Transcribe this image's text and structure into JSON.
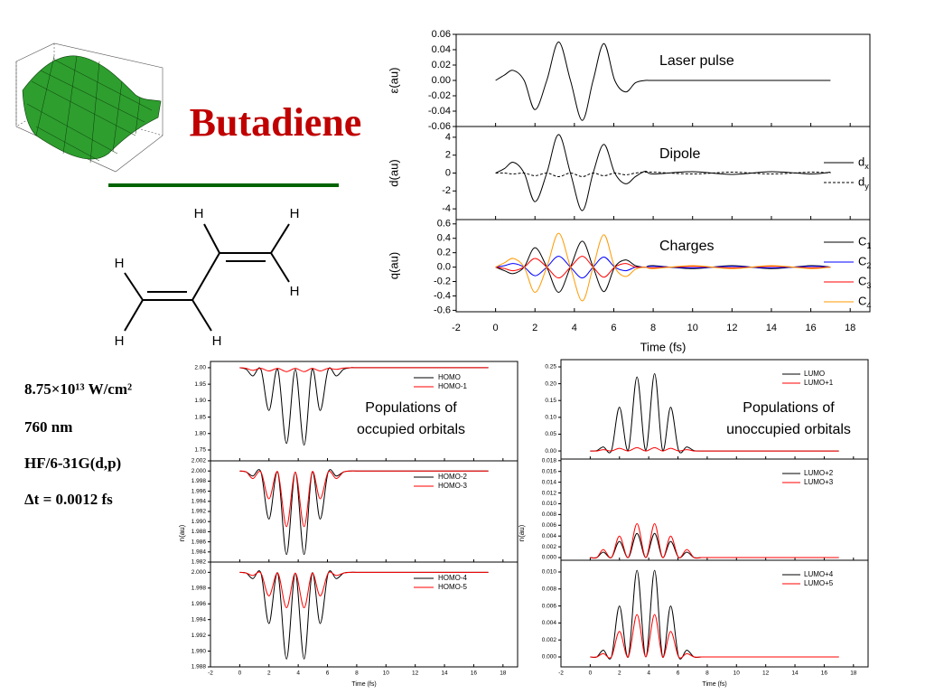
{
  "slide": {
    "title": "Butadiene",
    "conditions": [
      "8.75×10¹³ W/cm²",
      "760 nm",
      "HF/6-31G(d,p)",
      "Δt = 0.0012 fs"
    ],
    "molecule": {
      "atoms": [
        "H",
        "H",
        "H",
        "H",
        "H",
        "H"
      ]
    }
  },
  "chart_data": [
    {
      "type": "line",
      "xlabel": "Time (fs)",
      "xlim": [
        -2,
        19
      ],
      "xticks": [
        -2,
        0,
        2,
        4,
        6,
        8,
        10,
        12,
        14,
        16,
        18
      ],
      "x": [
        0,
        0.45,
        0.9,
        1.45,
        2.0,
        2.6,
        3.2,
        3.8,
        4.4,
        4.95,
        5.5,
        6.05,
        6.6,
        7.1,
        7.6,
        8,
        10,
        12,
        14,
        16,
        17
      ],
      "panels": [
        {
          "ylabel": "ε(au)",
          "annotation": "Laser pulse",
          "ylim": [
            -0.06,
            0.06
          ],
          "yticks": [
            0.06,
            0.04,
            0.02,
            {
              "value": 0,
              "label": "0.00"
            },
            -0.02,
            -0.04,
            -0.06
          ],
          "series": [
            {
              "color": "#000000",
              "values": [
                0,
                0.007,
                0.013,
                0,
                -0.038,
                0,
                0.05,
                0,
                -0.052,
                0,
                0.048,
                0,
                -0.015,
                -0.003,
                0,
                0,
                0,
                0,
                0,
                0,
                0
              ]
            }
          ]
        },
        {
          "ylabel": "d(au)",
          "annotation": "Dipole",
          "ylim": [
            -5.2,
            5.2
          ],
          "yticks": [
            -4,
            -2,
            0,
            2,
            4
          ],
          "series": [
            {
              "name": "dx",
              "color": "#000000",
              "values": [
                0,
                0.5,
                1.2,
                0,
                -3.2,
                0,
                4.3,
                0,
                -4.2,
                0,
                3.2,
                0,
                -1.2,
                -0.4,
                0.2,
                -0.1,
                0.15,
                -0.15,
                0.15,
                -0.1,
                0.1
              ]
            },
            {
              "name": "dy",
              "color": "#000000",
              "dashed": true,
              "values": [
                0,
                0,
                -0.1,
                0,
                -0.3,
                0,
                -0.4,
                0,
                -0.4,
                0,
                -0.3,
                0,
                -0.2,
                0,
                0.1,
                0.1,
                -0.1,
                0.1,
                -0.1,
                0.1,
                0
              ]
            }
          ]
        },
        {
          "ylabel": "q(au)",
          "annotation": "Charges",
          "ylim": [
            -0.62,
            0.66
          ],
          "yticks": [
            -0.6,
            -0.4,
            -0.2,
            {
              "value": 0,
              "label": "0.0"
            },
            0.2,
            0.4,
            0.6
          ],
          "series": [
            {
              "name": "C1",
              "color": "#000000",
              "values": [
                0,
                -0.05,
                -0.09,
                0,
                0.27,
                0,
                -0.35,
                0,
                0.36,
                0,
                -0.34,
                0,
                0.1,
                0.02,
                0,
                0.02,
                -0.02,
                0.02,
                -0.02,
                0.02,
                0
              ]
            },
            {
              "name": "C2",
              "color": "#0000ff",
              "values": [
                0,
                0.02,
                0.05,
                0,
                -0.12,
                0,
                0.15,
                0,
                -0.15,
                0,
                0.14,
                0,
                -0.05,
                0,
                0,
                0.01,
                -0.01,
                0.01,
                -0.01,
                0.01,
                0
              ]
            },
            {
              "name": "C3",
              "color": "#ff0000",
              "values": [
                0,
                -0.02,
                -0.05,
                0,
                0.12,
                0,
                -0.15,
                0,
                0.15,
                0,
                -0.14,
                0,
                0.05,
                0,
                0,
                -0.01,
                0.01,
                -0.01,
                0.01,
                -0.01,
                0
              ]
            },
            {
              "name": "C4",
              "color": "#ff9900",
              "values": [
                0,
                0.06,
                0.12,
                0,
                -0.35,
                0,
                0.47,
                0,
                -0.47,
                0,
                0.45,
                0,
                -0.13,
                -0.03,
                0,
                -0.02,
                0.02,
                -0.02,
                0.02,
                -0.02,
                0
              ]
            }
          ]
        }
      ]
    },
    {
      "type": "line",
      "xlabel": "Time (fs)",
      "ylabel": "n(au)",
      "annotation": [
        "Populations of",
        "occupied orbitals"
      ],
      "xlim": [
        -2,
        19
      ],
      "xticks": [
        -2,
        0,
        2,
        4,
        6,
        8,
        10,
        12,
        14,
        16,
        18
      ],
      "x": [
        0,
        0.45,
        0.9,
        1.45,
        2.0,
        2.6,
        3.2,
        3.8,
        4.4,
        4.95,
        5.5,
        6.05,
        6.6,
        7.1,
        7.6,
        8,
        10,
        12,
        14,
        16,
        17
      ],
      "panels": [
        {
          "ylim": [
            1.717,
            2.019
          ],
          "yticks": [
            1.75,
            {
              "value": 1.8,
              "label": "1.80"
            },
            1.85,
            {
              "value": 1.9,
              "label": "1.90"
            },
            1.95,
            {
              "value": 2,
              "label": "2.00"
            }
          ],
          "series": [
            {
              "name": "HOMO",
              "color": "#000000",
              "values": [
                2.0,
                1.995,
                1.975,
                1.995,
                1.87,
                1.995,
                1.77,
                1.995,
                1.765,
                1.995,
                1.87,
                1.995,
                1.975,
                1.995,
                2.0,
                2.0,
                2.0,
                2.0,
                2.0,
                2.0,
                2.0
              ]
            },
            {
              "name": "HOMO-1",
              "color": "#ff0000",
              "values": [
                2.0,
                1.998,
                1.992,
                1.998,
                1.99,
                1.998,
                1.988,
                1.998,
                1.988,
                1.998,
                1.99,
                1.998,
                1.995,
                1.999,
                2.0,
                2.0,
                2.0,
                2.0,
                2.0,
                2.0,
                2.0
              ]
            }
          ]
        },
        {
          "ylim": [
            1.982,
            2.002
          ],
          "yticks": [
            1.982,
            1.984,
            1.986,
            1.988,
            {
              "value": 1.99,
              "label": "1.990"
            },
            1.992,
            1.994,
            1.996,
            1.998,
            {
              "value": 2,
              "label": "2.000"
            },
            2.002
          ],
          "series": [
            {
              "name": "HOMO-2",
              "color": "#000000",
              "values": [
                2.0,
                1.9998,
                1.999,
                1.9998,
                1.9905,
                1.9998,
                1.9835,
                1.9998,
                1.9835,
                1.9998,
                1.9905,
                1.9998,
                1.999,
                1.9998,
                2.0,
                2.0,
                2.0,
                2.0,
                2.0,
                2.0,
                2.0
              ]
            },
            {
              "name": "HOMO-3",
              "color": "#ff0000",
              "values": [
                2.0,
                1.9998,
                1.9985,
                1.9998,
                1.9945,
                1.9998,
                1.989,
                1.9998,
                1.989,
                1.9998,
                1.9945,
                1.9998,
                1.9985,
                1.9998,
                2.0,
                2.0,
                2.0,
                2.0,
                2.0,
                2.0,
                2.0
              ]
            }
          ]
        },
        {
          "ylim": [
            1.988,
            2.0013
          ],
          "yticks": [
            1.988,
            {
              "value": 1.99,
              "label": "1.990"
            },
            1.992,
            1.994,
            1.996,
            1.998,
            {
              "value": 2,
              "label": "2.000"
            }
          ],
          "series": [
            {
              "name": "HOMO-4",
              "color": "#000000",
              "values": [
                2.0,
                1.9999,
                1.9992,
                1.9999,
                1.9935,
                1.9999,
                1.989,
                1.9999,
                1.989,
                1.9999,
                1.9935,
                1.9999,
                1.9992,
                1.9999,
                2.0,
                2.0,
                2.0,
                2.0,
                2.0,
                2.0,
                2.0
              ]
            },
            {
              "name": "HOMO-5",
              "color": "#ff0000",
              "values": [
                2.0,
                1.9999,
                1.9996,
                1.9999,
                1.997,
                1.9999,
                1.9955,
                1.9999,
                1.9955,
                1.9999,
                1.997,
                1.9999,
                1.9996,
                1.9999,
                2.0,
                2.0,
                2.0,
                2.0,
                2.0,
                2.0,
                2.0
              ]
            }
          ]
        }
      ]
    },
    {
      "type": "line",
      "xlabel": "Time (fs)",
      "ylabel": "n(au)",
      "annotation": [
        "Populations of",
        "unoccupied orbitals"
      ],
      "xlim": [
        -2,
        19
      ],
      "xticks": [
        -2,
        0,
        2,
        4,
        6,
        8,
        10,
        12,
        14,
        16,
        18
      ],
      "x": [
        0,
        0.45,
        0.9,
        1.45,
        2.0,
        2.6,
        3.2,
        3.8,
        4.4,
        4.95,
        5.5,
        6.05,
        6.6,
        7.1,
        7.6,
        8,
        10,
        12,
        14,
        16,
        17
      ],
      "panels": [
        {
          "ylim": [
            -0.024,
            0.2715
          ],
          "yticks": [
            {
              "value": 0,
              "label": "0.00"
            },
            0.05,
            {
              "value": 0.1,
              "label": "0.10"
            },
            0.15,
            {
              "value": 0.2,
              "label": "0.20"
            },
            0.25
          ],
          "series": [
            {
              "name": "LUMO",
              "color": "#000000",
              "values": [
                0,
                0.001,
                0.012,
                0.001,
                0.13,
                0.002,
                0.22,
                0.002,
                0.23,
                0.002,
                0.13,
                0.001,
                0.012,
                0.001,
                0,
                0,
                0,
                0,
                0,
                0,
                0
              ]
            },
            {
              "name": "LUMO+1",
              "color": "#ff0000",
              "values": [
                0,
                0,
                0.004,
                0,
                0.008,
                0,
                0.01,
                0,
                0.01,
                0,
                0.008,
                0,
                0.004,
                0,
                0,
                0,
                0,
                0,
                0,
                0,
                0
              ]
            }
          ]
        },
        {
          "ylim": [
            -0.0005,
            0.0183
          ],
          "yticks": [
            {
              "value": 0,
              "label": "0.000"
            },
            0.002,
            0.004,
            0.006,
            0.008,
            {
              "value": 0.01,
              "label": "0.010"
            },
            0.012,
            0.014,
            0.016,
            0.018
          ],
          "series": [
            {
              "name": "LUMO+2",
              "color": "#000000",
              "values": [
                0,
                0,
                0.001,
                0,
                0.003,
                0,
                0.0045,
                0,
                0.0045,
                0,
                0.003,
                0,
                0.001,
                0,
                0,
                0,
                0,
                0,
                0,
                0,
                0
              ]
            },
            {
              "name": "LUMO+3",
              "color": "#ff0000",
              "values": [
                0,
                0,
                0.0015,
                0,
                0.004,
                0,
                0.0063,
                0,
                0.0063,
                0,
                0.004,
                0,
                0.0015,
                0,
                0,
                0,
                0,
                0,
                0,
                0,
                0
              ]
            }
          ]
        },
        {
          "ylim": [
            -0.00117,
            0.01138
          ],
          "yticks": [
            {
              "value": 0,
              "label": "0.000"
            },
            0.002,
            0.004,
            0.006,
            0.008,
            {
              "value": 0.01,
              "label": "0.010"
            }
          ],
          "series": [
            {
              "name": "LUMO+4",
              "color": "#000000",
              "values": [
                0,
                0,
                0.0008,
                0,
                0.006,
                0,
                0.0102,
                0,
                0.0102,
                0,
                0.006,
                0,
                0.0008,
                0,
                0,
                0,
                0,
                0,
                0,
                0,
                0
              ]
            },
            {
              "name": "LUMO+5",
              "color": "#ff0000",
              "values": [
                0,
                0,
                0.0004,
                0,
                0.003,
                0,
                0.005,
                0,
                0.005,
                0,
                0.003,
                0,
                0.0004,
                0,
                0,
                0,
                0,
                0,
                0,
                0,
                0
              ]
            }
          ]
        }
      ]
    }
  ]
}
